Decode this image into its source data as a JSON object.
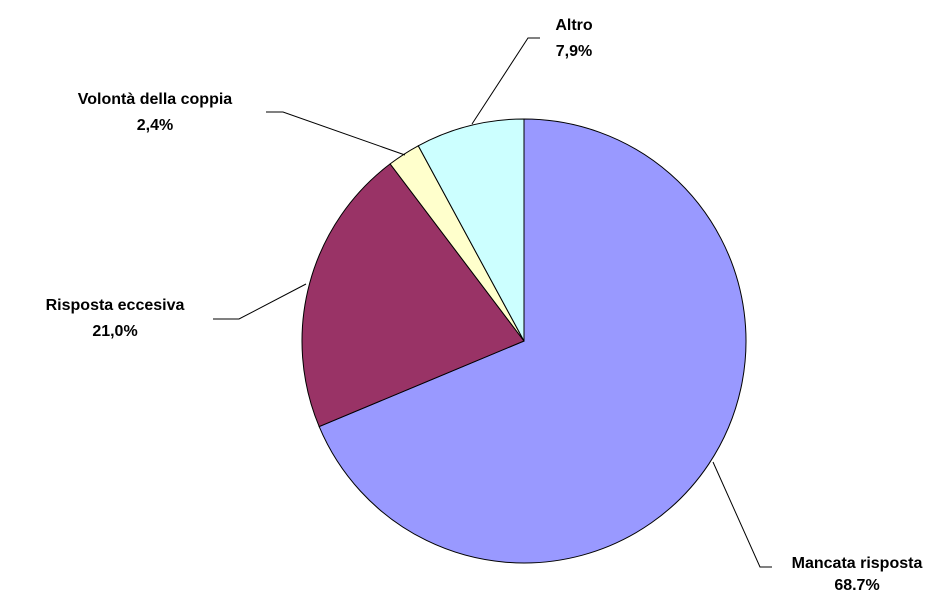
{
  "chart_data": {
    "type": "pie",
    "slices": [
      {
        "name": "Mancata risposta",
        "value": 68.7,
        "label": "68.7%",
        "color": "#9999ff"
      },
      {
        "name": "Risposta eccesiva",
        "value": 21.0,
        "label": "21,0%",
        "color": "#993366"
      },
      {
        "name": "Volontà della coppia",
        "value": 2.4,
        "label": "2,4%",
        "color": "#ffffcc"
      },
      {
        "name": "Altro",
        "value": 7.9,
        "label": "7,9%",
        "color": "#ccffff"
      }
    ],
    "start_angle": "top, clockwise",
    "legend": "none"
  }
}
